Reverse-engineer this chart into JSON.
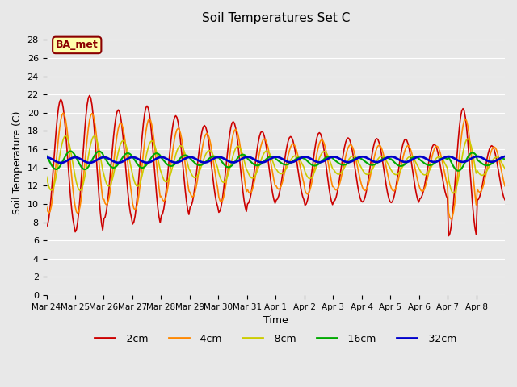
{
  "title": "Soil Temperatures Set C",
  "xlabel": "Time",
  "ylabel": "Soil Temperature (C)",
  "ylim": [
    0,
    29
  ],
  "yticks": [
    0,
    2,
    4,
    6,
    8,
    10,
    12,
    14,
    16,
    18,
    20,
    22,
    24,
    26,
    28
  ],
  "x_labels": [
    "Mar 24",
    "Mar 25",
    "Mar 26",
    "Mar 27",
    "Mar 28",
    "Mar 29",
    "Mar 30",
    "Mar 31",
    "Apr 1",
    "Apr 2",
    "Apr 3",
    "Apr 4",
    "Apr 5",
    "Apr 6",
    "Apr 7",
    "Apr 8"
  ],
  "colors": {
    "-2cm": "#cc0000",
    "-4cm": "#ff8800",
    "-8cm": "#cccc00",
    "-16cm": "#00aa00",
    "-32cm": "#0000cc"
  },
  "legend_labels": [
    "-2cm",
    "-4cm",
    "-8cm",
    "-16cm",
    "-32cm"
  ],
  "annotation": "BA_met",
  "bg_color": "#e8e8e8",
  "plot_bg_color": "#e8e8e8",
  "phase_shifts": {
    "-2cm": 0,
    "-4cm": 2,
    "-8cm": 4,
    "-16cm": 8,
    "-32cm": 12
  },
  "linewidths": {
    "-2cm": 1.2,
    "-4cm": 1.2,
    "-8cm": 1.2,
    "-16cm": 1.5,
    "-32cm": 2.0
  },
  "series": {
    "-2cm": {
      "base": 14.5,
      "amplitudes": [
        7.0,
        7.5,
        6.0,
        6.5,
        5.5,
        4.5,
        5.0,
        4.0,
        3.5,
        4.0,
        3.5,
        3.5,
        3.5,
        3.0,
        7.0,
        3.0
      ],
      "trend": -0.003
    },
    "-4cm": {
      "base": 14.5,
      "amplitudes": [
        5.5,
        5.5,
        4.5,
        5.0,
        4.0,
        3.5,
        4.0,
        3.0,
        2.5,
        3.0,
        2.5,
        2.5,
        2.5,
        2.5,
        5.5,
        2.5
      ],
      "trend": -0.002
    },
    "-8cm": {
      "base": 14.5,
      "amplitudes": [
        3.0,
        3.0,
        2.5,
        2.5,
        2.0,
        1.5,
        2.0,
        1.5,
        1.0,
        1.5,
        1.0,
        1.0,
        1.0,
        1.0,
        3.0,
        1.0
      ],
      "trend": -0.001
    },
    "-16cm": {
      "base": 14.8,
      "amplitudes": [
        1.0,
        1.0,
        0.8,
        0.8,
        0.6,
        0.5,
        0.7,
        0.5,
        0.4,
        0.5,
        0.4,
        0.4,
        0.5,
        0.4,
        1.0,
        0.4
      ],
      "trend": -0.0005
    },
    "-32cm": {
      "base": 14.8,
      "amplitudes": [
        0.3,
        0.3,
        0.3,
        0.3,
        0.3,
        0.3,
        0.3,
        0.3,
        0.3,
        0.3,
        0.3,
        0.3,
        0.3,
        0.3,
        0.3,
        0.3
      ],
      "trend": 0.0003
    }
  }
}
